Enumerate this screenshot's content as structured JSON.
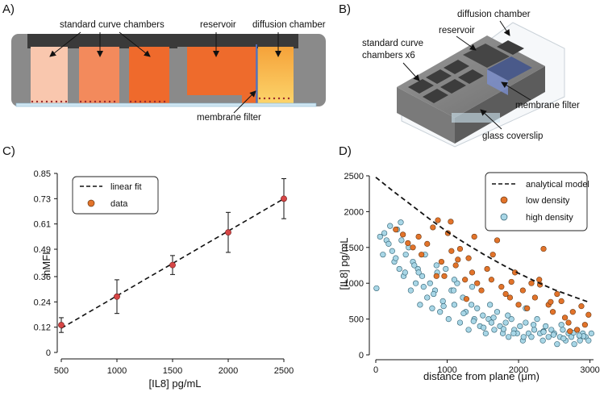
{
  "panels": {
    "a": {
      "label": "A)",
      "annotations": [
        "standard curve chambers",
        "reservoir",
        "diffusion chamber",
        "membrane filter"
      ]
    },
    "b": {
      "label": "B)",
      "annotations": [
        "diffusion chamber",
        "reservoir",
        "standard curve",
        "chambers x6",
        "membrane filter",
        "glass coverslip"
      ]
    },
    "c": {
      "label": "C)"
    },
    "d": {
      "label": "D)"
    }
  },
  "colors": {
    "chamber_1": "#f9c7ae",
    "chamber_2": "#f38a5c",
    "chamber_3": "#ef6a2c",
    "reservoir": "#ee6b2c",
    "diffusion_top": "#f7b23a",
    "frame": "#8a8a8a",
    "dark_top": "#3a3a3a",
    "low_density": "#e2732a",
    "high_density": "#a8d6e6",
    "fit_marker": "#d64545"
  },
  "chart_data": [
    {
      "type": "scatter",
      "panel": "C",
      "title": "",
      "xlabel": "[IL8] pg/mL",
      "ylabel": "nMFI",
      "xlim": [
        500,
        2500
      ],
      "ylim": [
        0,
        0.85
      ],
      "xticks": [
        "500",
        "1000",
        "1500",
        "2000",
        "2500"
      ],
      "yticks": [
        "0",
        "0.12",
        "0.24",
        "0.36",
        "0.49",
        "0.61",
        "0.73",
        "0.85"
      ],
      "legend": [
        "linear fit",
        "data"
      ],
      "legend_position": "top-left",
      "series": [
        {
          "name": "data",
          "x": [
            500,
            1000,
            1500,
            2000,
            2500
          ],
          "y": [
            0.13,
            0.265,
            0.415,
            0.57,
            0.73
          ],
          "error": [
            0.035,
            0.08,
            0.045,
            0.095,
            0.095
          ]
        },
        {
          "name": "linear fit",
          "x": [
            500,
            2500
          ],
          "y": [
            0.115,
            0.73
          ]
        }
      ]
    },
    {
      "type": "scatter",
      "panel": "D",
      "title": "",
      "xlabel": "distance from plane (μm)",
      "ylabel": "[IL8]  pg/mL",
      "xlim": [
        0,
        3050
      ],
      "ylim": [
        0,
        2500
      ],
      "xticks": [
        "0",
        "1000",
        "2000",
        "3000"
      ],
      "yticks": [
        "0",
        "500",
        "1000",
        "1500",
        "2000",
        "2500"
      ],
      "legend": [
        "analytical model",
        "low density",
        "high density"
      ],
      "legend_position": "top-right",
      "series": [
        {
          "name": "analytical model",
          "x": [
            0,
            250,
            500,
            750,
            1000,
            1250,
            1500,
            1750,
            2000,
            2250,
            2500,
            2750,
            3000
          ],
          "y": [
            2480,
            2280,
            2090,
            1900,
            1720,
            1560,
            1410,
            1270,
            1140,
            1020,
            910,
            820,
            730
          ]
        },
        {
          "name": "low density",
          "x": [
            280,
            380,
            450,
            520,
            600,
            640,
            720,
            800,
            870,
            920,
            960,
            1010,
            1060,
            1120,
            1180,
            1250,
            1300,
            1350,
            1420,
            1480,
            1560,
            1620,
            1700,
            1760,
            1820,
            1880,
            1950,
            2000,
            2060,
            2120,
            2180,
            2230,
            2290,
            2350,
            2420,
            2480,
            2540,
            2600,
            2650,
            2700,
            2760,
            2820,
            2880,
            2930,
            2980,
            1150,
            1380,
            1640,
            1900,
            2300,
            2450,
            2720,
            850,
            1050,
            1270
          ],
          "y": [
            1750,
            1680,
            1560,
            1500,
            1650,
            1400,
            1550,
            1780,
            1880,
            1300,
            1100,
            1700,
            1450,
            1250,
            1480,
            1050,
            1350,
            1150,
            1000,
            900,
            1200,
            1050,
            1600,
            950,
            850,
            800,
            1150,
            700,
            900,
            650,
            1000,
            800,
            1050,
            1480,
            700,
            600,
            850,
            750,
            520,
            450,
            600,
            350,
            680,
            420,
            560,
            1330,
            1650,
            1400,
            1020,
            980,
            740,
            330,
            1100,
            1860,
            780
          ]
        },
        {
          "name": "high density",
          "x": [
            10,
            60,
            120,
            150,
            200,
            230,
            260,
            300,
            330,
            360,
            390,
            420,
            460,
            490,
            520,
            560,
            590,
            620,
            650,
            690,
            720,
            760,
            790,
            830,
            860,
            900,
            940,
            980,
            1020,
            1060,
            1100,
            1140,
            1180,
            1220,
            1260,
            1300,
            1340,
            1380,
            1420,
            1460,
            1500,
            1540,
            1580,
            1620,
            1660,
            1700,
            1740,
            1780,
            1820,
            1860,
            1900,
            1940,
            1980,
            2020,
            2060,
            2100,
            2140,
            2180,
            2220,
            2260,
            2300,
            2340,
            2380,
            2420,
            2460,
            2500,
            2540,
            2580,
            2620,
            2660,
            2700,
            2740,
            2780,
            2820,
            2860,
            2900,
            2940,
            2980,
            3020,
            180,
            280,
            410,
            540,
            670,
            810,
            950,
            1090,
            1230,
            1370,
            1510,
            1650,
            1790,
            1930,
            2070,
            2210,
            2350,
            2490,
            2630,
            2770,
            2910,
            100,
            350,
            600,
            850,
            1100,
            1350,
            1600,
            1850,
            2100,
            2350,
            2600,
            2850
          ],
          "y": [
            930,
            1650,
            1700,
            1600,
            1800,
            1450,
            1300,
            1750,
            1200,
            1600,
            1100,
            1400,
            1500,
            900,
            1300,
            1000,
            1200,
            700,
            1100,
            1400,
            800,
            1000,
            650,
            900,
            1150,
            600,
            750,
            1200,
            500,
            900,
            700,
            1000,
            450,
            800,
            600,
            350,
            700,
            500,
            650,
            400,
            550,
            300,
            500,
            450,
            350,
            600,
            400,
            300,
            450,
            250,
            500,
            350,
            300,
            400,
            200,
            450,
            300,
            250,
            350,
            500,
            300,
            200,
            400,
            250,
            350,
            300,
            150,
            250,
            350,
            200,
            300,
            250,
            150,
            350,
            200,
            300,
            250,
            200,
            300,
            1550,
            1350,
            1150,
            1250,
            950,
            850,
            680,
            900,
            580,
            470,
            380,
            520,
            360,
            300,
            250,
            420,
            330,
            280,
            230,
            310,
            260,
            1400,
            1850,
            1150,
            1250,
            1050,
            950,
            700,
            550,
            650,
            320,
            420,
            270
          ]
        }
      ]
    }
  ]
}
